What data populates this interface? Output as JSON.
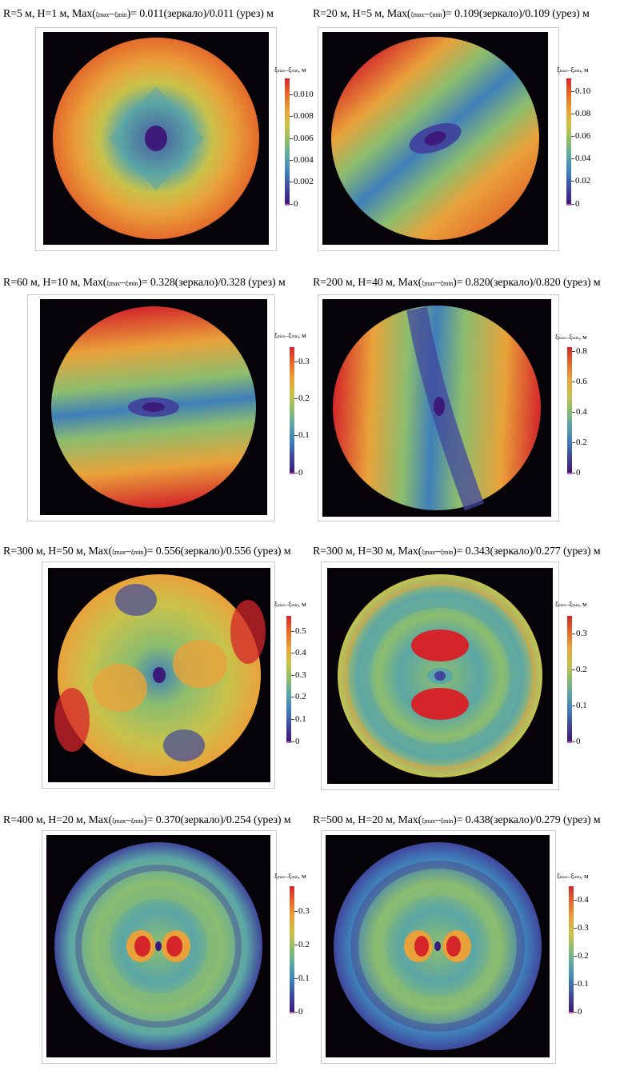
{
  "colors": {
    "colormap": [
      "#3b1a7a",
      "#40479c",
      "#3f7fb9",
      "#5ba6a6",
      "#8cbd6e",
      "#c9c24a",
      "#e9a23a",
      "#e46a2c",
      "#d3252a"
    ],
    "background": "#050308",
    "colorbar_min_marker": "#cc66aa"
  },
  "chart_data": [
    {
      "type": "heatmap",
      "title": {
        "pre": "R=5 м, H=1 м, Max(",
        "sub1": "ξmax",
        "mid": "–",
        "sub2": "ξmin",
        "post": ")= 0.011(зеркало)/0.011 (урез) м"
      },
      "params": {
        "R_m": 5,
        "H_m": 1,
        "max_mirror_m": 0.011,
        "max_edge_m": 0.011
      },
      "colorbar": {
        "label_sym1": "ξ",
        "sub1": "max",
        "mid": "–ξ",
        "sub2": "min",
        "unit": ", м",
        "range": [
          0,
          0.0115
        ],
        "ticks": [
          "0",
          "0.002",
          "0.004",
          "0.006",
          "0.008",
          "0.010"
        ],
        "tick_values": [
          0,
          0.002,
          0.004,
          0.006,
          0.008,
          0.01
        ]
      },
      "pattern": "Centered depression (minimum ≈0) with diamond-shaped contours; values rise to ≈0.011 at the rim"
    },
    {
      "type": "heatmap",
      "title": {
        "pre": "R=20 м, H=5 м, Max(",
        "sub1": "ξmax",
        "mid": "–",
        "sub2": "ξmin",
        "post": ")= 0.109(зеркало)/0.109 (урез) м"
      },
      "params": {
        "R_m": 20,
        "H_m": 5,
        "max_mirror_m": 0.109,
        "max_edge_m": 0.109
      },
      "colorbar": {
        "label_sym1": "ξ",
        "sub1": "max",
        "mid": "–ξ",
        "sub2": "min",
        "unit": ", м",
        "range": [
          0,
          0.112
        ],
        "ticks": [
          "0",
          "0.02",
          "0.04",
          "0.06",
          "0.08",
          "0.10"
        ],
        "tick_values": [
          0,
          0.02,
          0.04,
          0.06,
          0.08,
          0.1
        ]
      },
      "pattern": "Elliptical minimum at center, tilted band; maxima (≈0.11) at upper-left and lower-right rim"
    },
    {
      "type": "heatmap",
      "title": {
        "pre": "R=60 м, H=10 м, Max(",
        "sub1": "ξmax",
        "mid": "–",
        "sub2": "ξmin",
        "post": ")= 0.328(зеркало)/0.328 (урез) м"
      },
      "params": {
        "R_m": 60,
        "H_m": 10,
        "max_mirror_m": 0.328,
        "max_edge_m": 0.328
      },
      "colorbar": {
        "label_sym1": "ξ",
        "sub1": "max",
        "mid": "–ξ",
        "sub2": "min",
        "unit": ", м",
        "range": [
          0,
          0.34
        ],
        "ticks": [
          "0",
          "0.1",
          "0.2",
          "0.3"
        ],
        "tick_values": [
          0,
          0.1,
          0.2,
          0.3
        ]
      },
      "pattern": "Horizontal low band through center with minimum at center; maxima (≈0.33) at top and bottom rim"
    },
    {
      "type": "heatmap",
      "title": {
        "pre": "R=200 м, H=40 м, Max(",
        "sub1": "ξmax",
        "mid": "–",
        "sub2": "ξmin",
        "post": ")= 0.820(зеркало)/0.820 (урез) м"
      },
      "params": {
        "R_m": 200,
        "H_m": 40,
        "max_mirror_m": 0.82,
        "max_edge_m": 0.82
      },
      "colorbar": {
        "label_sym1": "ξ",
        "sub1": "max",
        "mid": "–ξ",
        "sub2": "min",
        "unit": ", м",
        "range": [
          0,
          0.83
        ],
        "ticks": [
          "0",
          "0.2",
          "0.4",
          "0.6",
          "0.8"
        ],
        "tick_values": [
          0,
          0.2,
          0.4,
          0.6,
          0.8
        ]
      },
      "pattern": "Near-vertical low band (tilted) through center; maxima (≈0.82) at left and right rim"
    },
    {
      "type": "heatmap",
      "title": {
        "pre": "R=300 м, H=50 м, Max(",
        "sub1": "ξmax",
        "mid": "–",
        "sub2": "ξmin",
        "post": ")= 0.556(зеркало)/0.556 (урез) м"
      },
      "params": {
        "R_m": 300,
        "H_m": 50,
        "max_mirror_m": 0.556,
        "max_edge_m": 0.556
      },
      "colorbar": {
        "label_sym1": "ξ",
        "sub1": "max",
        "mid": "–ξ",
        "sub2": "min",
        "unit": ", м",
        "range": [
          0,
          0.57
        ],
        "ticks": [
          "0",
          "0.1",
          "0.2",
          "0.3",
          "0.4",
          "0.5"
        ],
        "tick_values": [
          0,
          0.1,
          0.2,
          0.3,
          0.4,
          0.5
        ]
      },
      "pattern": "Central minimum with lows at top and bottom; orange lobes left and right of center; maxima at left-lower and right-upper rim"
    },
    {
      "type": "heatmap",
      "title": {
        "pre": "R=300 м, H=30 м, Max(",
        "sub1": "ξmax",
        "mid": "–",
        "sub2": "ξmin",
        "post": ")= 0.343(зеркало)/0.277 (урез) м"
      },
      "params": {
        "R_m": 300,
        "H_m": 30,
        "max_mirror_m": 0.343,
        "max_edge_m": 0.277
      },
      "colorbar": {
        "label_sym1": "ξ",
        "sub1": "max",
        "mid": "–ξ",
        "sub2": "min",
        "unit": ", м",
        "range": [
          0,
          0.35
        ],
        "ticks": [
          "0",
          "0.1",
          "0.2",
          "0.3"
        ],
        "tick_values": [
          0,
          0.1,
          0.2,
          0.3
        ]
      },
      "pattern": "Small central minimum flanked above and below by red maxima (≈0.34); concentric ring structure"
    },
    {
      "type": "heatmap",
      "title": {
        "pre": "R=400 м, H=20 м, Max(",
        "sub1": "ξmax",
        "mid": "–",
        "sub2": "ξmin",
        "post": ")= 0.370(зеркало)/0.254 (урез) м"
      },
      "params": {
        "R_m": 400,
        "H_m": 20,
        "max_mirror_m": 0.37,
        "max_edge_m": 0.254
      },
      "colorbar": {
        "label_sym1": "ξ",
        "sub1": "max",
        "mid": "–ξ",
        "sub2": "min",
        "unit": ", м",
        "range": [
          0,
          0.375
        ],
        "ticks": [
          "0",
          "0.1",
          "0.2",
          "0.3"
        ],
        "tick_values": [
          0,
          0.1,
          0.2,
          0.3
        ]
      },
      "pattern": "Central minimum flanked left and right by red maxima (≈0.37); concentric rings of lower values"
    },
    {
      "type": "heatmap",
      "title": {
        "pre": "R=500 м, H=20 м, Max(",
        "sub1": "ξmax",
        "mid": "–",
        "sub2": "ξmin",
        "post": ")= 0.438(зеркало)/0.279 (урез) м"
      },
      "params": {
        "R_m": 500,
        "H_m": 20,
        "max_mirror_m": 0.438,
        "max_edge_m": 0.279
      },
      "colorbar": {
        "label_sym1": "ξ",
        "sub1": "max",
        "mid": "–ξ",
        "sub2": "min",
        "unit": ", м",
        "range": [
          0,
          0.45
        ],
        "ticks": [
          "0",
          "0.1",
          "0.2",
          "0.3",
          "0.4"
        ],
        "tick_values": [
          0,
          0.1,
          0.2,
          0.3,
          0.4
        ]
      },
      "pattern": "Central minimum flanked left and right by red maxima (≈0.44); dense concentric ring structure"
    }
  ]
}
